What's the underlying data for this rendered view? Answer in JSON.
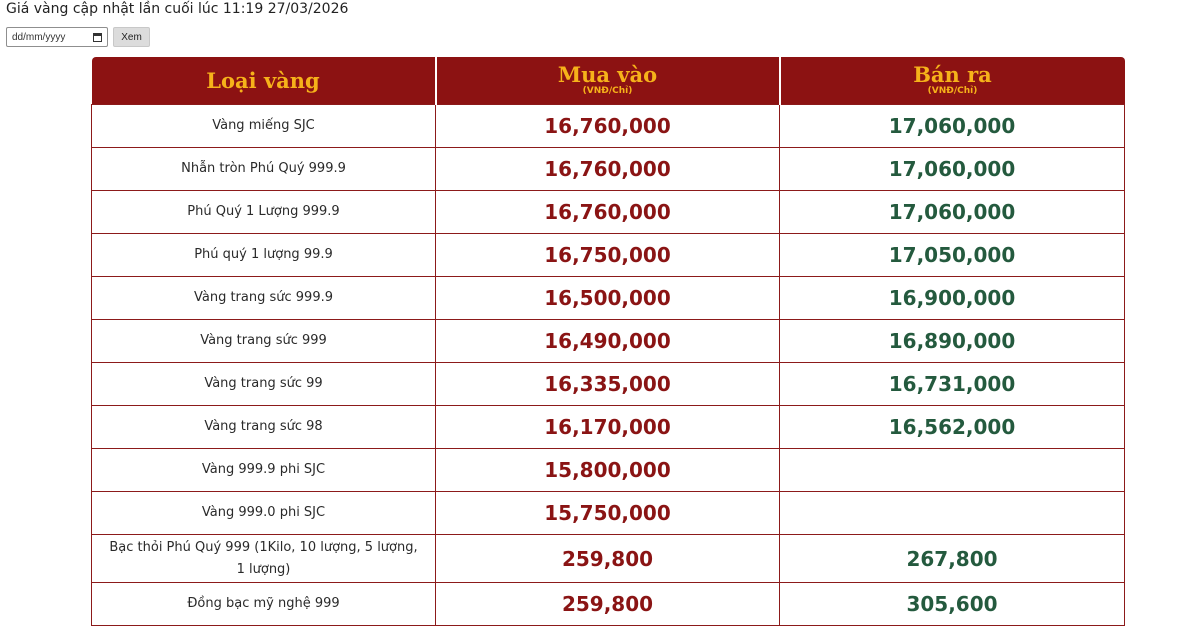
{
  "update_text": "Giá vàng cập nhật lần cuối lúc 11:19 27/03/2026",
  "date_placeholder": "dd/mm/yyyy",
  "view_button_label": "Xem",
  "table": {
    "headers": [
      {
        "title": "Loại vàng",
        "unit": ""
      },
      {
        "title": "Mua vào",
        "unit": "(VNĐ/Chỉ)"
      },
      {
        "title": "Bán ra",
        "unit": "(VNĐ/Chỉ)"
      }
    ],
    "rows": [
      {
        "name": "Vàng miếng SJC",
        "buy": "16,760,000",
        "sell": "17,060,000"
      },
      {
        "name": "Nhẫn tròn Phú Quý 999.9",
        "buy": "16,760,000",
        "sell": "17,060,000"
      },
      {
        "name": "Phú Quý 1 Lượng 999.9",
        "buy": "16,760,000",
        "sell": "17,060,000"
      },
      {
        "name": "Phú quý 1 lượng 99.9",
        "buy": "16,750,000",
        "sell": "17,050,000"
      },
      {
        "name": "Vàng trang sức 999.9",
        "buy": "16,500,000",
        "sell": "16,900,000"
      },
      {
        "name": "Vàng trang sức 999",
        "buy": "16,490,000",
        "sell": "16,890,000"
      },
      {
        "name": "Vàng trang sức 99",
        "buy": "16,335,000",
        "sell": "16,731,000"
      },
      {
        "name": "Vàng trang sức 98",
        "buy": "16,170,000",
        "sell": "16,562,000"
      },
      {
        "name": "Vàng 999.9 phi SJC",
        "buy": "15,800,000",
        "sell": ""
      },
      {
        "name": "Vàng 999.0 phi SJC",
        "buy": "15,750,000",
        "sell": ""
      },
      {
        "name": "Bạc thỏi Phú Quý 999 (1Kilo, 10 lượng, 5 lượng, 1 lượng)",
        "buy": "259,800",
        "sell": "267,800"
      },
      {
        "name": "Đồng bạc mỹ nghệ 999",
        "buy": "259,800",
        "sell": "305,600"
      }
    ]
  }
}
